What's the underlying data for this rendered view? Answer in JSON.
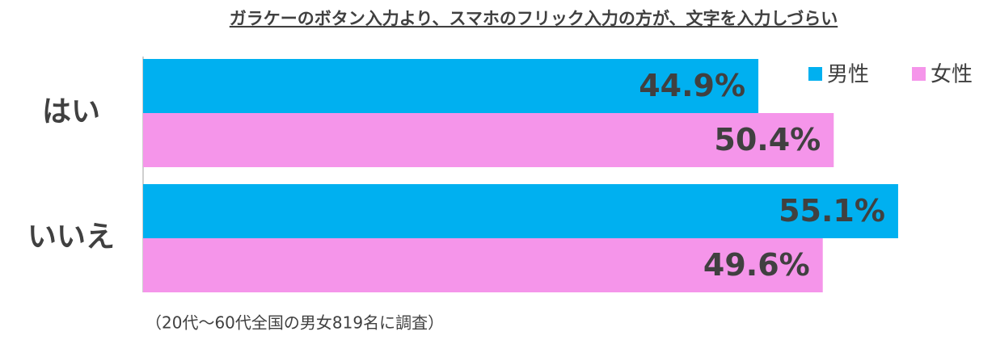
{
  "chart_data": {
    "type": "hbar",
    "title": "ガラケーのボタン入力より、スマホのフリック入力の方が、文字を入力しづらい",
    "categories": [
      "はい",
      "いいえ"
    ],
    "series": [
      {
        "name": "男性",
        "color": "#00b0f0",
        "values": [
          44.9,
          55.1
        ],
        "value_labels": [
          "44.9%",
          "55.1%"
        ]
      },
      {
        "name": "女性",
        "color": "#f595ea",
        "values": [
          50.4,
          49.6
        ],
        "value_labels": [
          "50.4%",
          "49.6%"
        ]
      }
    ],
    "legend": "top-right",
    "footnote": "（20代～60代全国の男女819名に調査）"
  }
}
